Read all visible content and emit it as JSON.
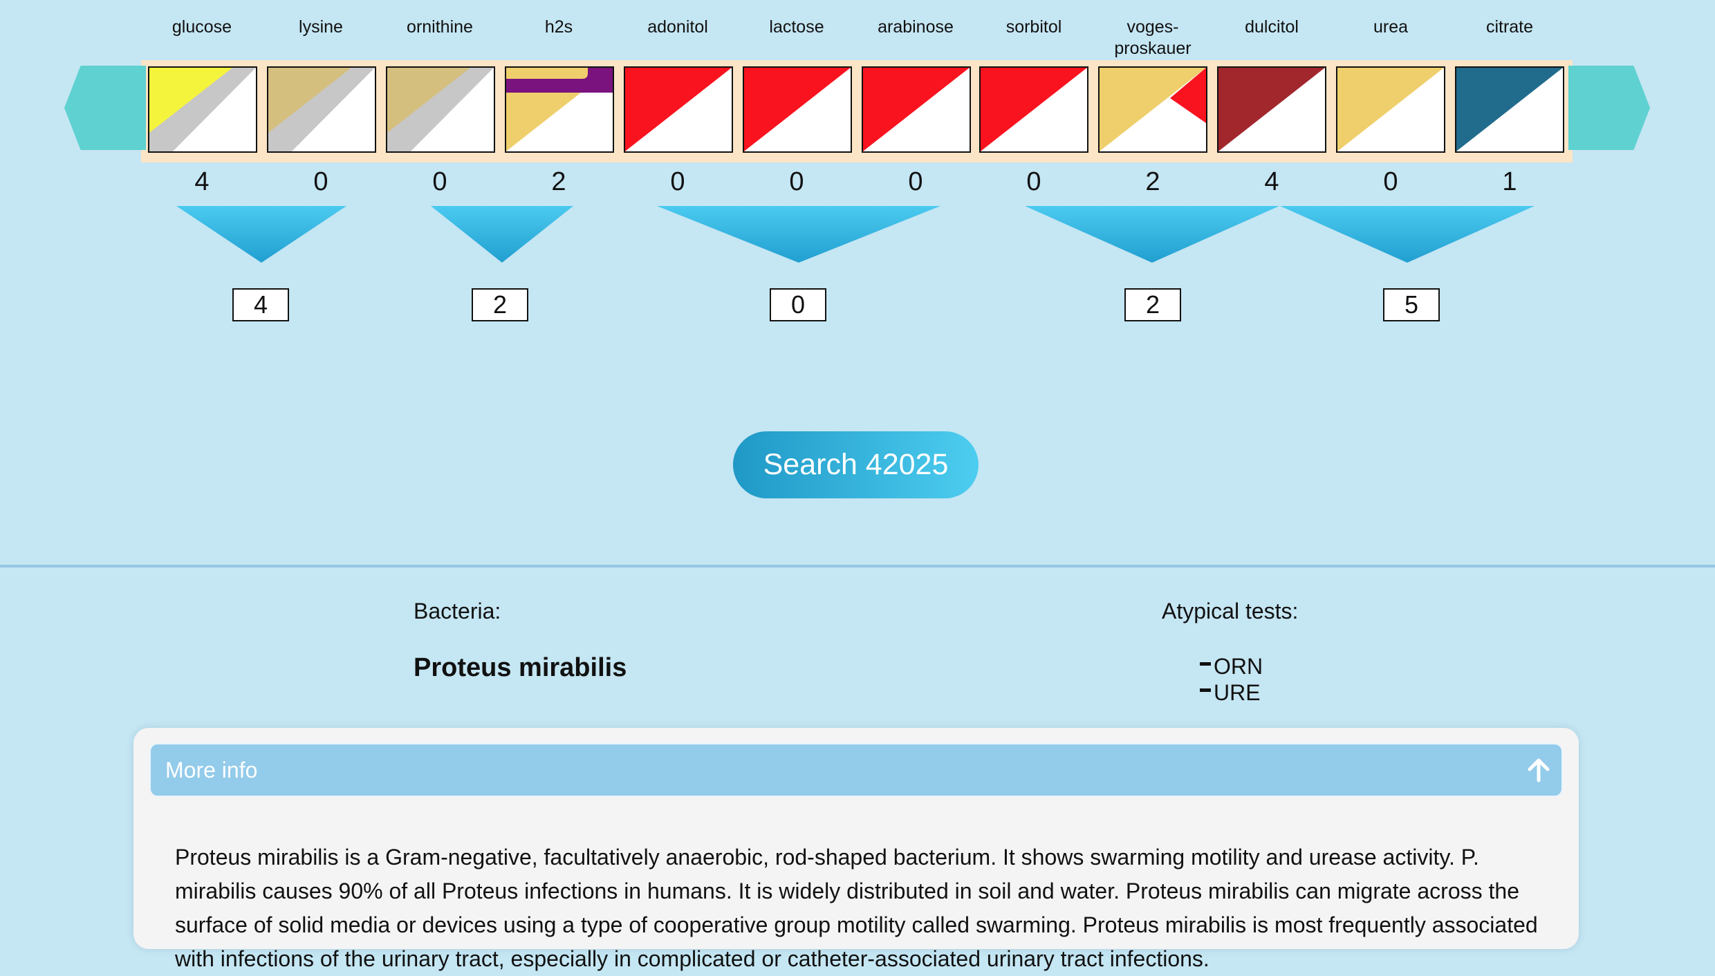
{
  "tests": [
    {
      "label": "glucose",
      "score": "4",
      "colors": {
        "top": "#f5f43c",
        "stripe": "#c7c7c7",
        "bottom": "#ffffff"
      }
    },
    {
      "label": "lysine",
      "score": "0",
      "colors": {
        "top": "#d5bf7f",
        "stripe": "#c7c7c7",
        "bottom": "#ffffff"
      }
    },
    {
      "label": "ornithine",
      "score": "0",
      "colors": {
        "top": "#d5bf7f",
        "stripe": "#c7c7c7",
        "bottom": "#ffffff"
      }
    },
    {
      "label": "h2s",
      "score": "2",
      "colors": {
        "top": "#efcf6c",
        "band": "#7a137e",
        "bottom": "#ffffff"
      }
    },
    {
      "label": "adonitol",
      "score": "0",
      "colors": {
        "top": "#f8131f",
        "bottom": "#ffffff"
      }
    },
    {
      "label": "lactose",
      "score": "0",
      "colors": {
        "top": "#f8131f",
        "bottom": "#ffffff"
      }
    },
    {
      "label": "arabinose",
      "score": "0",
      "colors": {
        "top": "#f8131f",
        "bottom": "#ffffff"
      }
    },
    {
      "label": "sorbitol",
      "score": "0",
      "colors": {
        "top": "#f8131f",
        "bottom": "#ffffff"
      }
    },
    {
      "label": "voges-proskauer",
      "score": "2",
      "colors": {
        "top": "#efcf6c",
        "accent": "#f8131f",
        "bottom": "#ffffff"
      }
    },
    {
      "label": "dulcitol",
      "score": "4",
      "colors": {
        "top": "#a1272d",
        "bottom": "#ffffff"
      }
    },
    {
      "label": "urea",
      "score": "0",
      "colors": {
        "top": "#efcf6c",
        "bottom": "#ffffff"
      }
    },
    {
      "label": "citrate",
      "score": "1",
      "colors": {
        "top": "#216c8d",
        "bottom": "#ffffff"
      }
    }
  ],
  "groups": [
    "4",
    "2",
    "0",
    "2",
    "5"
  ],
  "search": {
    "label": "Search 42025"
  },
  "result": {
    "bacteria_heading": "Bacteria:",
    "bacteria_name": "Proteus mirabilis",
    "atypical_heading": "Atypical tests:",
    "atypical_tests": [
      "ORN",
      "URE"
    ]
  },
  "info": {
    "title": "More info",
    "text": "Proteus mirabilis is a Gram-negative, facultatively anaerobic, rod-shaped bacterium. It shows swarming motility and urease activity. P. mirabilis causes 90% of all Proteus infections in humans. It is widely distributed in soil and water. Proteus mirabilis can migrate across the surface of solid media or devices using a type of cooperative group motility called swarming. Proteus mirabilis is most frequently associated with infections of the urinary tract, especially in complicated or catheter-associated urinary tract infections."
  },
  "theme": {
    "background": "#c5e6f3",
    "strip": "#fbe5c6",
    "arrow": "#5ed1d0",
    "button_start": "#1f98c6",
    "button_end": "#4dcdf0",
    "info_header": "#93cbea"
  }
}
